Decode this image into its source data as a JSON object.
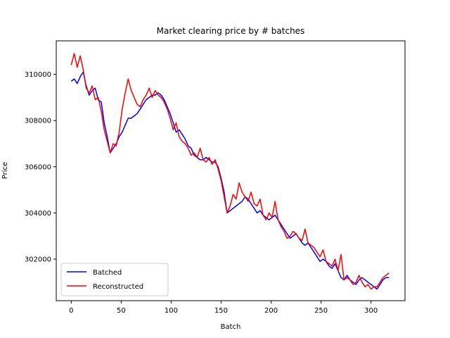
{
  "chart_data": {
    "type": "line",
    "title": "Market clearing price by # batches",
    "xlabel": "Batch",
    "ylabel": "Price",
    "xlim": [
      -15,
      334
    ],
    "ylim": [
      300200,
      311450
    ],
    "xticks": [
      0,
      50,
      100,
      150,
      200,
      250,
      300
    ],
    "yticks": [
      302000,
      304000,
      306000,
      308000,
      310000
    ],
    "grid": false,
    "legend_position": "lower-left",
    "series": [
      {
        "name": "Batched",
        "color": "#0000ff",
        "x": [
          0,
          3,
          6,
          9,
          12,
          15,
          18,
          21,
          24,
          27,
          30,
          33,
          36,
          39,
          42,
          45,
          48,
          51,
          54,
          57,
          60,
          63,
          66,
          69,
          72,
          75,
          78,
          81,
          84,
          87,
          90,
          93,
          96,
          99,
          102,
          105,
          108,
          111,
          114,
          117,
          120,
          123,
          126,
          129,
          132,
          135,
          138,
          141,
          144,
          147,
          150,
          153,
          156,
          159,
          162,
          165,
          168,
          171,
          174,
          177,
          180,
          183,
          186,
          189,
          192,
          195,
          198,
          201,
          204,
          207,
          210,
          213,
          216,
          219,
          222,
          225,
          228,
          231,
          234,
          237,
          240,
          243,
          246,
          249,
          252,
          255,
          258,
          261,
          264,
          267,
          270,
          273,
          276,
          279,
          282,
          285,
          288,
          291,
          294,
          297,
          300,
          303,
          306,
          309,
          312,
          315,
          318
        ],
        "values": [
          309700,
          309800,
          309600,
          309900,
          310100,
          309500,
          309100,
          309300,
          309400,
          308900,
          308800,
          307900,
          307300,
          306600,
          306800,
          307000,
          307300,
          307500,
          307800,
          308100,
          308100,
          308200,
          308300,
          308500,
          308700,
          308900,
          309000,
          309100,
          309100,
          309200,
          309100,
          308900,
          308600,
          308300,
          307900,
          307500,
          307600,
          307400,
          307200,
          306900,
          306800,
          306500,
          306400,
          306300,
          306300,
          306400,
          306300,
          306200,
          306200,
          306000,
          305500,
          304900,
          304000,
          304100,
          304200,
          304300,
          304400,
          304500,
          304700,
          304600,
          304400,
          304200,
          304000,
          304100,
          303900,
          303800,
          303700,
          303800,
          303900,
          303700,
          303500,
          303300,
          303100,
          302900,
          303000,
          303100,
          302900,
          302700,
          302600,
          302700,
          302500,
          302300,
          302100,
          301900,
          302000,
          301900,
          301700,
          301600,
          301800,
          301500,
          301200,
          301100,
          301300,
          301100,
          301000,
          300900,
          301100,
          301200,
          301100,
          301000,
          300900,
          300800,
          300700,
          300900,
          301100,
          301200,
          301200
        ]
      },
      {
        "name": "Reconstructed",
        "color": "#ff0000",
        "x": [
          0,
          3,
          6,
          9,
          12,
          15,
          18,
          21,
          24,
          27,
          30,
          33,
          36,
          39,
          42,
          45,
          48,
          51,
          54,
          57,
          60,
          63,
          66,
          69,
          72,
          75,
          78,
          81,
          84,
          87,
          90,
          93,
          96,
          99,
          102,
          105,
          108,
          111,
          114,
          117,
          120,
          123,
          126,
          129,
          132,
          135,
          138,
          141,
          144,
          147,
          150,
          153,
          156,
          159,
          162,
          165,
          168,
          171,
          174,
          177,
          180,
          183,
          186,
          189,
          192,
          195,
          198,
          201,
          204,
          207,
          210,
          213,
          216,
          219,
          222,
          225,
          228,
          231,
          234,
          237,
          240,
          243,
          246,
          249,
          252,
          255,
          258,
          261,
          264,
          267,
          270,
          273,
          276,
          279,
          282,
          285,
          288,
          291,
          294,
          297,
          300,
          303,
          306,
          309,
          312,
          315,
          318
        ],
        "values": [
          310400,
          310900,
          310300,
          310800,
          310200,
          309400,
          309200,
          309500,
          308900,
          309000,
          308400,
          307600,
          307100,
          306600,
          307000,
          306900,
          307500,
          308500,
          309200,
          309800,
          309300,
          309000,
          308700,
          308600,
          308900,
          309100,
          309400,
          309000,
          309300,
          309100,
          309000,
          308800,
          308500,
          308100,
          307600,
          307900,
          307300,
          307100,
          307000,
          306800,
          306500,
          306600,
          306400,
          306800,
          306300,
          306200,
          306400,
          306100,
          306300,
          305900,
          305400,
          304700,
          304000,
          304300,
          304800,
          304600,
          305300,
          304900,
          304700,
          304500,
          304900,
          304400,
          304300,
          304600,
          303900,
          303700,
          304000,
          303800,
          304500,
          303700,
          303400,
          303200,
          302900,
          303000,
          303200,
          303100,
          302900,
          302800,
          303300,
          302700,
          302600,
          302500,
          302300,
          302100,
          302400,
          301900,
          301800,
          301700,
          302000,
          301500,
          302200,
          301100,
          301200,
          301100,
          300900,
          301000,
          301300,
          301000,
          300800,
          300900,
          300700,
          300800,
          300800,
          301000,
          301200,
          301300,
          301400
        ]
      }
    ]
  }
}
